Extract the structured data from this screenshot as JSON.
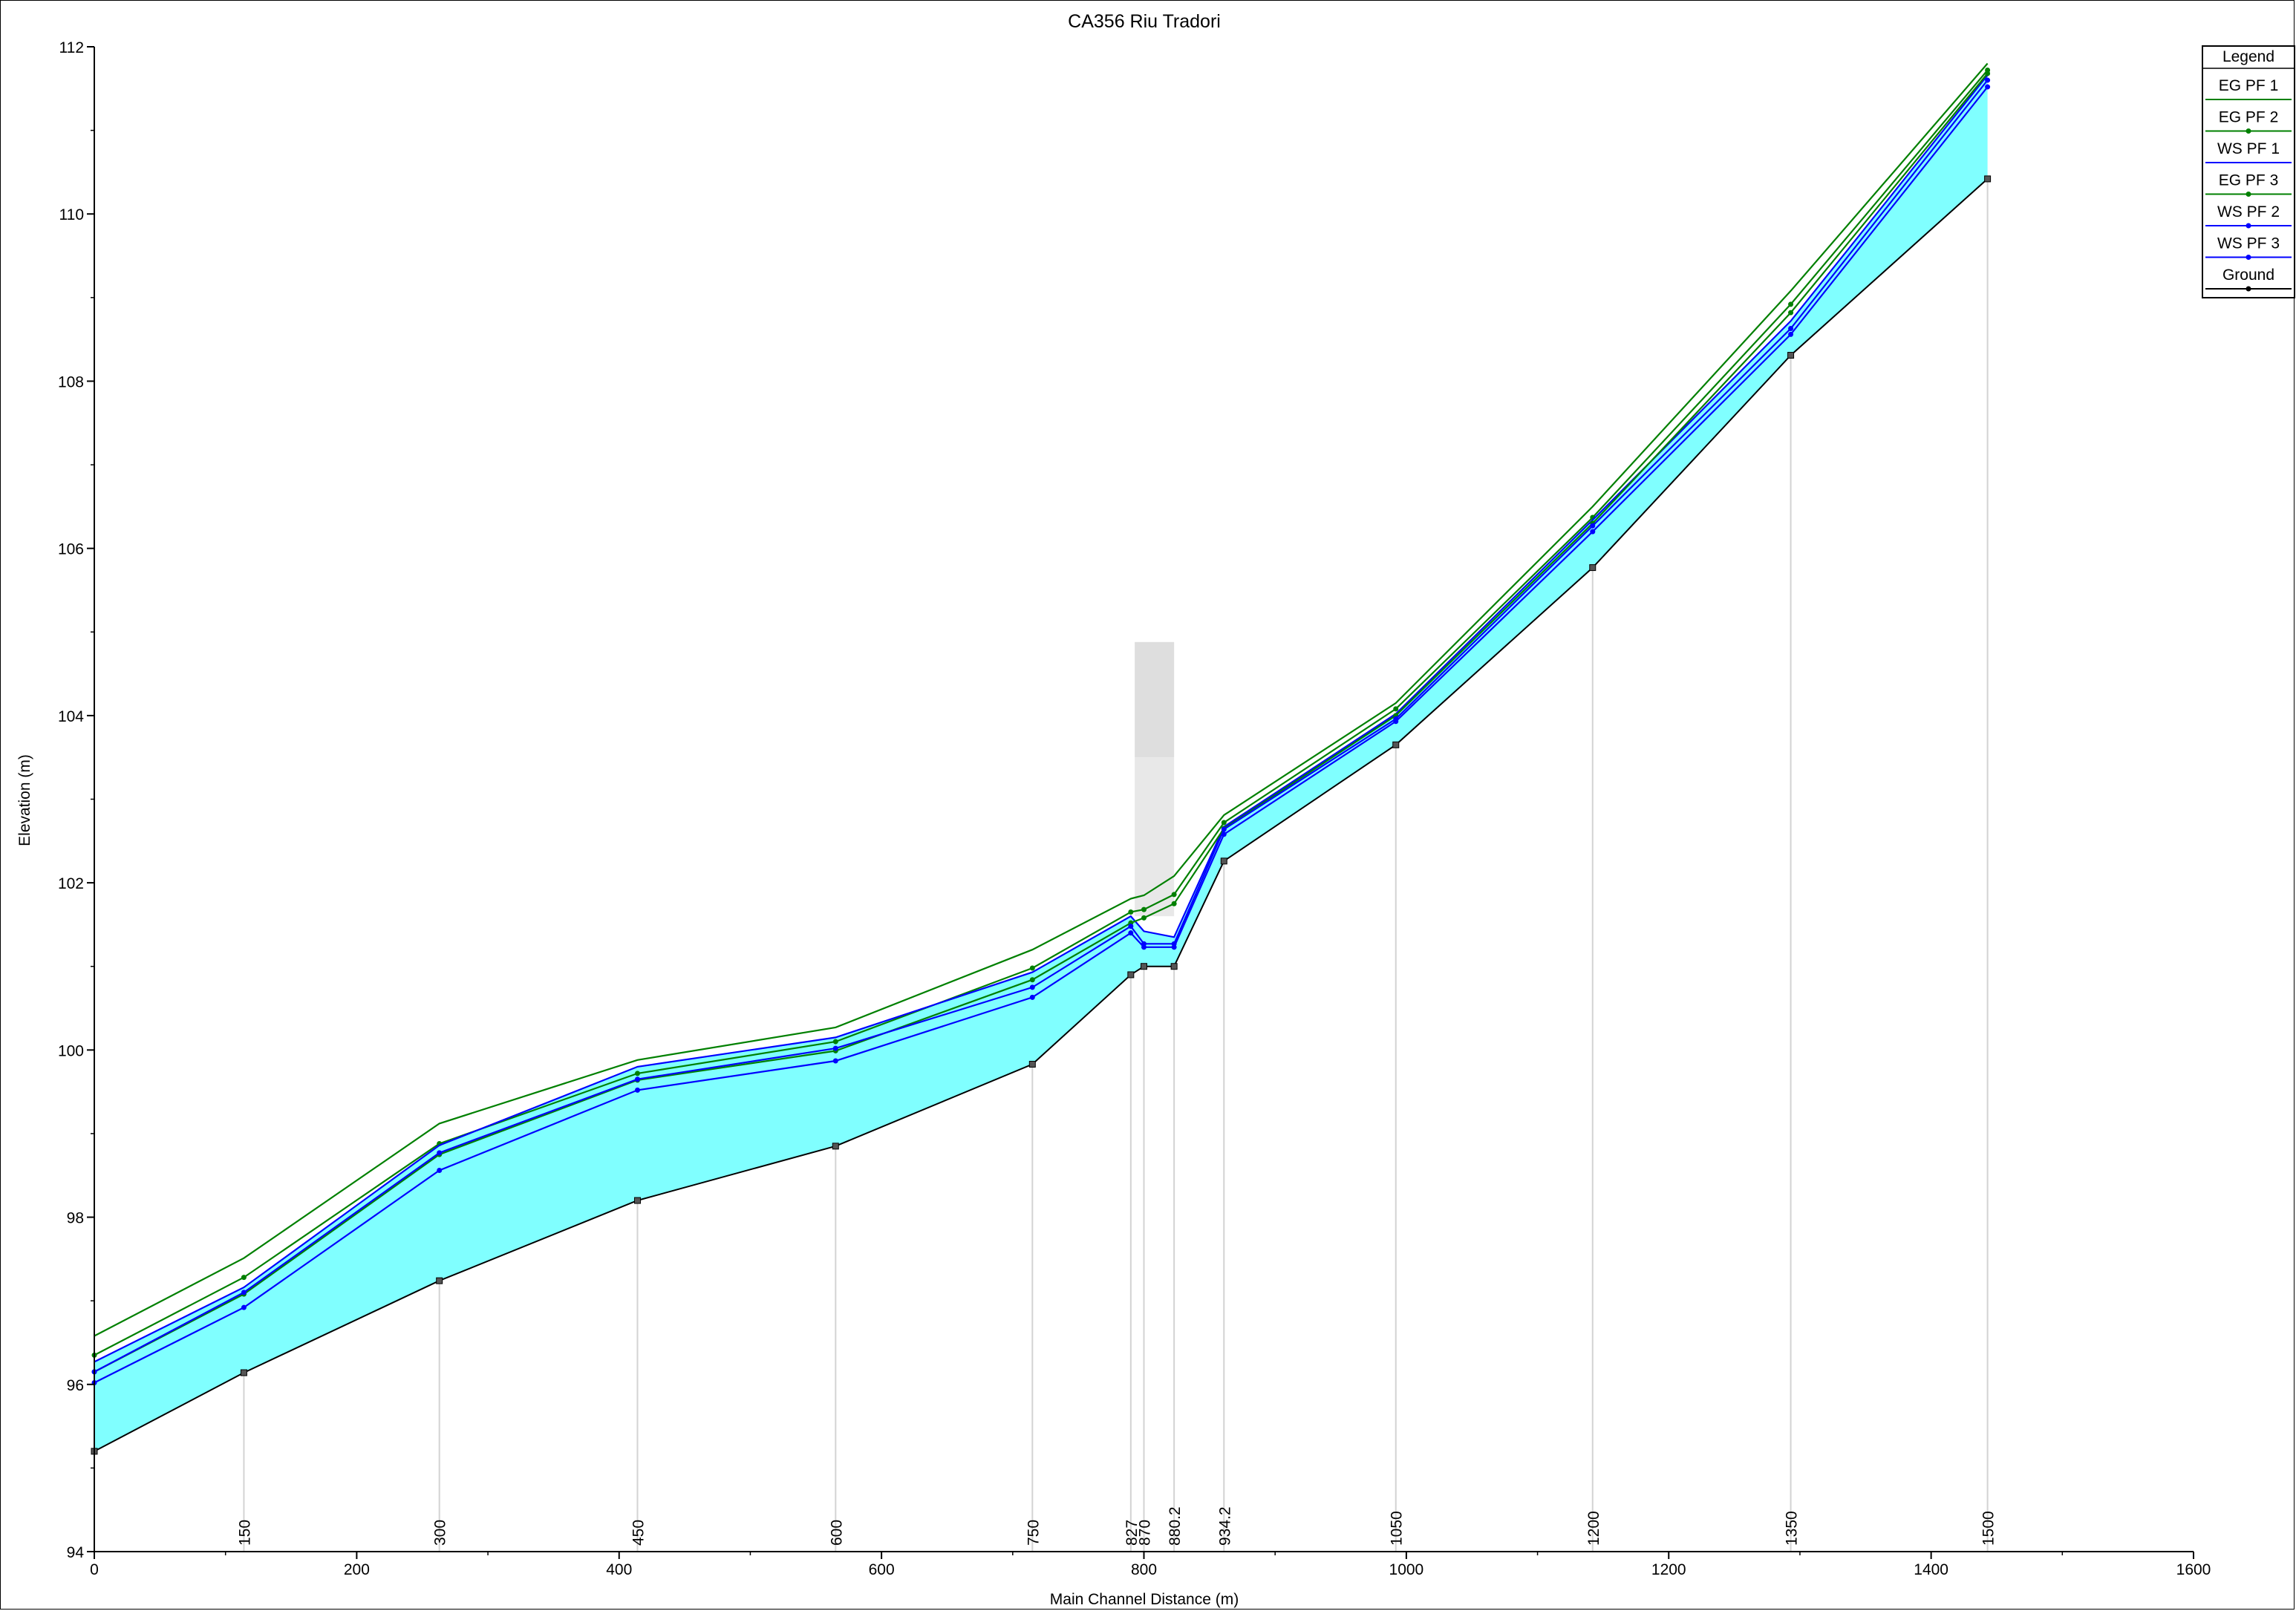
{
  "chart_data": {
    "type": "line",
    "title": "CA356 Riu Tradori",
    "xlabel": "Main Channel Distance (m)",
    "ylabel": "Elevation (m)",
    "xlim": [
      0,
      1600
    ],
    "ylim": [
      94,
      112
    ],
    "x_ticks": [
      0,
      200,
      400,
      600,
      800,
      1000,
      1200,
      1400,
      1600
    ],
    "y_ticks": [
      94,
      96,
      98,
      100,
      102,
      104,
      106,
      108,
      110,
      112
    ],
    "grid": false,
    "legend_position": "top-right",
    "legend_title": "Legend",
    "station_x": [
      0,
      114,
      263,
      414,
      565,
      715,
      790,
      800,
      823,
      861,
      992,
      1142,
      1293,
      1443
    ],
    "station_labels": [
      "",
      "150",
      "300",
      "450",
      "600",
      "750",
      "827",
      "870",
      "880.2",
      "934.2",
      "1050",
      "1200",
      "1350",
      "1500"
    ],
    "series": [
      {
        "name": "EG PF 1",
        "color": "#008000",
        "marker": "none",
        "values": [
          96.58,
          97.51,
          99.12,
          99.88,
          100.27,
          101.2,
          101.81,
          101.85,
          102.08,
          102.81,
          104.15,
          106.5,
          109.08,
          111.8
        ]
      },
      {
        "name": "EG PF 2",
        "color": "#008000",
        "marker": "triangle",
        "values": [
          96.35,
          97.28,
          98.88,
          99.72,
          100.1,
          100.98,
          101.65,
          101.68,
          101.86,
          102.72,
          104.08,
          106.37,
          108.92,
          111.72
        ]
      },
      {
        "name": "WS PF 1",
        "color": "#0000ff",
        "marker": "none",
        "values": [
          96.27,
          97.16,
          98.86,
          99.8,
          100.15,
          100.93,
          101.6,
          101.42,
          101.35,
          102.67,
          104.02,
          106.34,
          108.72,
          111.66
        ]
      },
      {
        "name": "EG PF 3",
        "color": "#008000",
        "marker": "dot",
        "values": [
          96.15,
          97.08,
          98.75,
          99.64,
          99.99,
          100.84,
          101.52,
          101.58,
          101.75,
          102.65,
          104.0,
          106.3,
          108.82,
          111.68
        ]
      },
      {
        "name": "WS PF 2",
        "color": "#0000ff",
        "marker": "triangle",
        "values": [
          96.15,
          97.1,
          98.77,
          99.65,
          100.02,
          100.75,
          101.48,
          101.27,
          101.27,
          102.64,
          103.96,
          106.27,
          108.63,
          111.6
        ]
      },
      {
        "name": "WS PF 3",
        "color": "#0000ff",
        "marker": "dot",
        "values": [
          96.02,
          96.92,
          98.56,
          99.52,
          99.87,
          100.63,
          101.4,
          101.23,
          101.23,
          102.58,
          103.93,
          106.2,
          108.56,
          111.52
        ]
      },
      {
        "name": "Ground",
        "color": "#000000",
        "marker": "square",
        "values": [
          95.2,
          96.14,
          97.24,
          98.2,
          98.85,
          99.83,
          100.9,
          101.0,
          101.0,
          102.26,
          103.65,
          105.77,
          108.31,
          110.42
        ]
      }
    ],
    "bridge": {
      "x_start": 793,
      "x_end": 823,
      "deck_top": 104.88,
      "deck_bottom": 103.5
    }
  },
  "colors": {
    "water_fill": "#80ffff",
    "ground_line": "#000000",
    "eg_lines": "#008000",
    "ws_lines": "#0000ff",
    "bridge_fill": "#d3d3d3",
    "station_lines": "#d3d3d3"
  }
}
